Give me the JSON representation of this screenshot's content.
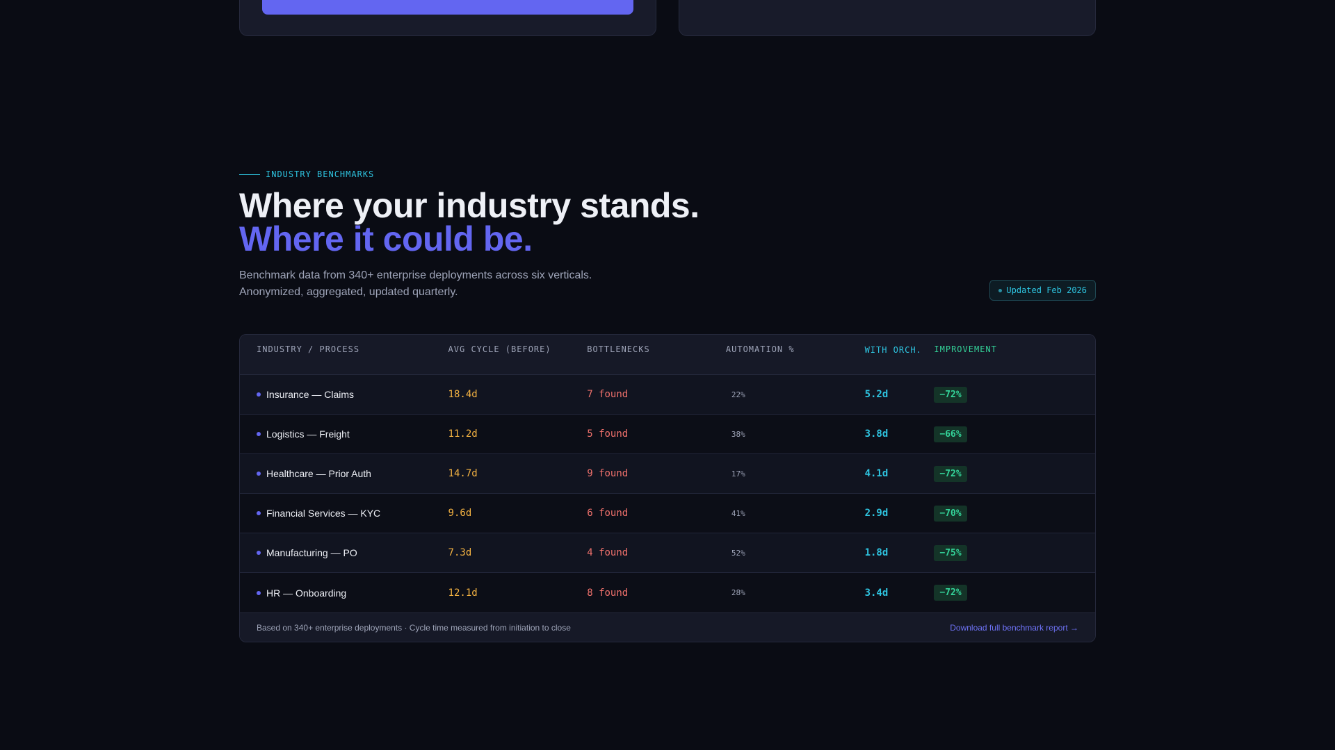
{
  "benchmarks": {
    "eyebrow": "INDUSTRY BENCHMARKS",
    "headline_line1": "Where your industry stands.",
    "headline_line2": "Where it could be.",
    "subtext_line1": "Benchmark data from 340+ enterprise deployments across six verticals.",
    "subtext_line2": "Anonymized, aggregated, updated quarterly.",
    "updated_badge": "Updated Feb 2026",
    "colors": {
      "accent": "#6366f1",
      "cyan": "#2ec4e0",
      "green": "#34d399",
      "amber": "#f5b342",
      "red": "#f0716c"
    }
  },
  "table": {
    "headers": {
      "process": "INDUSTRY / PROCESS",
      "avg_cycle": "AVG CYCLE (BEFORE)",
      "bottlenecks": "BOTTLENECKS",
      "automation": "AUTOMATION %",
      "with_orch": "WITH ORCH.",
      "improvement": "IMPROVEMENT"
    },
    "rows": [
      {
        "process": "Insurance — Claims",
        "avg_cycle": "18.4d",
        "bottlenecks": "7 found",
        "automation": "22%",
        "with_orch": "5.2d",
        "improvement": "−72%"
      },
      {
        "process": "Logistics — Freight",
        "avg_cycle": "11.2d",
        "bottlenecks": "5 found",
        "automation": "38%",
        "with_orch": "3.8d",
        "improvement": "−66%"
      },
      {
        "process": "Healthcare — Prior Auth",
        "avg_cycle": "14.7d",
        "bottlenecks": "9 found",
        "automation": "17%",
        "with_orch": "4.1d",
        "improvement": "−72%"
      },
      {
        "process": "Financial Services — KYC",
        "avg_cycle": "9.6d",
        "bottlenecks": "6 found",
        "automation": "41%",
        "with_orch": "2.9d",
        "improvement": "−70%"
      },
      {
        "process": "Manufacturing — PO",
        "avg_cycle": "7.3d",
        "bottlenecks": "4 found",
        "automation": "52%",
        "with_orch": "1.8d",
        "improvement": "−75%"
      },
      {
        "process": "HR — Onboarding",
        "avg_cycle": "12.1d",
        "bottlenecks": "8 found",
        "automation": "28%",
        "with_orch": "3.4d",
        "improvement": "−72%"
      }
    ],
    "footer_note": "Based on 340+ enterprise deployments · Cycle time measured from initiation to close",
    "download_link": "Download full benchmark report →"
  }
}
